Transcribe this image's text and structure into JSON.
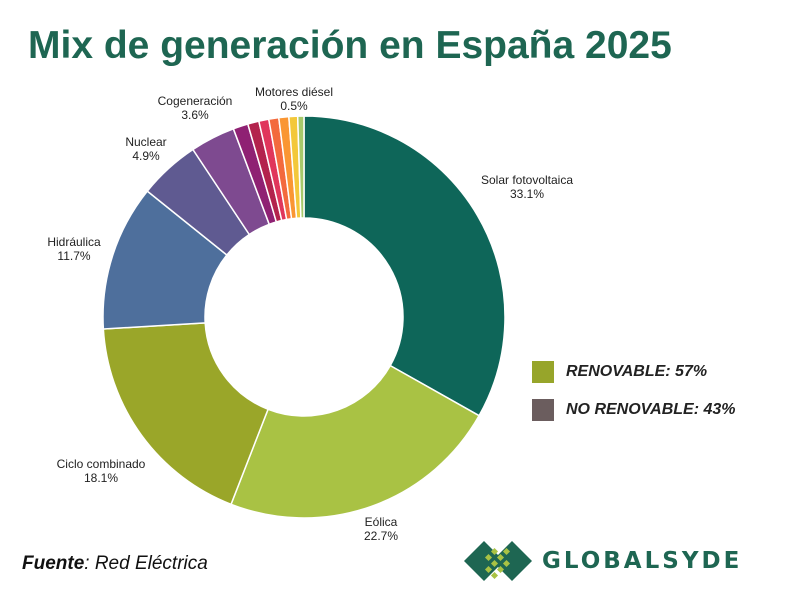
{
  "title": "Mix de generación en España 2025",
  "chart_data": {
    "type": "pie",
    "title": "Mix de generación en España 2025",
    "slices": [
      {
        "label": "Solar fotovoltaica",
        "pct_label": "33.1%",
        "value": 33.1,
        "color": "#0e6659",
        "renewable": true
      },
      {
        "label": "Eólica",
        "pct_label": "22.7%",
        "value": 22.7,
        "color": "#a9c244",
        "renewable": true
      },
      {
        "label": "Ciclo combinado",
        "pct_label": "18.1%",
        "value": 18.1,
        "color": "#9aa629",
        "renewable": false
      },
      {
        "label": "Hidráulica",
        "pct_label": "11.7%",
        "value": 11.7,
        "color": "#4e6f9c",
        "renewable": true
      },
      {
        "label": "Nuclear",
        "pct_label": "4.9%",
        "value": 4.9,
        "color": "#5f5a91",
        "renewable": false
      },
      {
        "label": "Cogeneración",
        "pct_label": "3.6%",
        "value": 3.6,
        "color": "#7e4a90",
        "renewable": false
      },
      {
        "label": "",
        "pct_label": "",
        "value": 1.2,
        "color": "#8f2173"
      },
      {
        "label": "",
        "pct_label": "",
        "value": 0.9,
        "color": "#b3234d"
      },
      {
        "label": "",
        "pct_label": "",
        "value": 0.8,
        "color": "#e0365b"
      },
      {
        "label": "",
        "pct_label": "",
        "value": 0.8,
        "color": "#f36a3d"
      },
      {
        "label": "",
        "pct_label": "",
        "value": 0.8,
        "color": "#fa9633"
      },
      {
        "label": "",
        "pct_label": "",
        "value": 0.7,
        "color": "#f3c83a"
      },
      {
        "label": "Motores diésel",
        "pct_label": "0.5%",
        "value": 0.5,
        "color": "#a7c96a",
        "renewable": false
      }
    ],
    "legend": [
      {
        "label": "RENOVABLE: 57%",
        "color": "#97a52a"
      },
      {
        "label": "NO RENOVABLE: 43%",
        "color": "#6b5d5e"
      }
    ],
    "legend_position": "right"
  },
  "source": {
    "prefix": "Fuente",
    "text": ": Red Eléctrica"
  },
  "logo": {
    "text": "GLOBALSYDE"
  }
}
